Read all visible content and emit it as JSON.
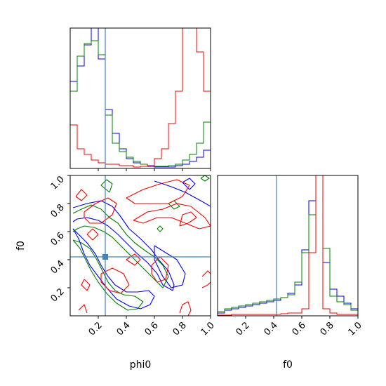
{
  "chart_data": {
    "type": "corner",
    "parameters": [
      "phi0",
      "f0"
    ],
    "truths": {
      "phi0": 0.25,
      "f0": 0.42
    },
    "axis_range": {
      "phi0": [
        0.0,
        1.0
      ],
      "f0": [
        0.0,
        1.0
      ]
    },
    "ticks": {
      "phi0": [
        "0.2",
        "0.4",
        "0.6",
        "0.8",
        "1.0"
      ],
      "f0": [
        "0.2",
        "0.4",
        "0.6",
        "0.8",
        "1.0"
      ]
    },
    "tick_values": [
      0.2,
      0.4,
      0.6,
      0.8,
      1.0
    ],
    "colors": {
      "series1": "#0000ff",
      "series2": "#008000",
      "series3": "#ff0000",
      "truth": "#4682b4"
    },
    "hist_phi0": {
      "bin_edges": [
        0,
        0.05,
        0.1,
        0.15,
        0.2,
        0.25,
        0.3,
        0.35,
        0.4,
        0.45,
        0.5,
        0.55,
        0.6,
        0.65,
        0.7,
        0.75,
        0.8,
        0.85,
        0.9,
        0.95,
        1.0
      ],
      "ylim": [
        0,
        1.0
      ],
      "series": [
        {
          "color": "#0000ff",
          "values": [
            0.62,
            0.73,
            0.88,
            1.02,
            0.78,
            0.42,
            0.25,
            0.14,
            0.07,
            0.04,
            0.03,
            0.015,
            0.01,
            0.01,
            0.01,
            0.02,
            0.03,
            0.05,
            0.08,
            0.13
          ]
        },
        {
          "color": "#008000",
          "values": [
            0.55,
            0.8,
            0.89,
            0.91,
            0.81,
            0.38,
            0.18,
            0.12,
            0.08,
            0.05,
            0.03,
            0.02,
            0.015,
            0.015,
            0.02,
            0.03,
            0.06,
            0.1,
            0.18,
            0.33
          ]
        },
        {
          "color": "#ff0000",
          "values": [
            0.31,
            0.14,
            0.1,
            0.06,
            0.04,
            0.03,
            0.03,
            0.02,
            0.02,
            0.01,
            0.015,
            0.02,
            0.07,
            0.14,
            0.32,
            0.55,
            1.12,
            1.02,
            0.83,
            0.55
          ]
        }
      ]
    },
    "hist_f0": {
      "bin_edges": [
        0,
        0.05,
        0.1,
        0.15,
        0.2,
        0.25,
        0.3,
        0.35,
        0.4,
        0.45,
        0.5,
        0.55,
        0.6,
        0.65,
        0.7,
        0.75,
        0.8,
        0.85,
        0.9,
        0.95,
        1.0
      ],
      "ylim": [
        0,
        1.0
      ],
      "series": [
        {
          "color": "#0000ff",
          "values": [
            0.02,
            0.04,
            0.05,
            0.06,
            0.07,
            0.08,
            0.09,
            0.1,
            0.11,
            0.13,
            0.16,
            0.22,
            0.47,
            0.82,
            1.08,
            0.38,
            0.19,
            0.14,
            0.09,
            0.05
          ]
        },
        {
          "color": "#008000",
          "values": [
            0.03,
            0.05,
            0.06,
            0.07,
            0.08,
            0.09,
            0.1,
            0.11,
            0.12,
            0.13,
            0.15,
            0.24,
            0.45,
            0.72,
            1.06,
            0.48,
            0.14,
            0.1,
            0.08,
            0.04
          ]
        },
        {
          "color": "#ff0000",
          "values": [
            0.005,
            0.005,
            0.01,
            0.01,
            0.01,
            0.01,
            0.01,
            0.01,
            0.01,
            0.015,
            0.02,
            0.02,
            0.05,
            0.45,
            1.25,
            0.05,
            0.02,
            0.01,
            0.01,
            0.01
          ]
        }
      ]
    },
    "contours": [
      {
        "color": "#0000ff",
        "paths": [
          [
            [
              0.02,
              0.77
            ],
            [
              0.12,
              0.8
            ],
            [
              0.22,
              0.82
            ],
            [
              0.3,
              0.78
            ],
            [
              0.35,
              0.72
            ],
            [
              0.42,
              0.62
            ],
            [
              0.5,
              0.55
            ],
            [
              0.58,
              0.47
            ],
            [
              0.63,
              0.4
            ],
            [
              0.7,
              0.32
            ],
            [
              0.74,
              0.22
            ],
            [
              0.73,
              0.18
            ],
            [
              0.66,
              0.22
            ],
            [
              0.62,
              0.3
            ],
            [
              0.55,
              0.38
            ],
            [
              0.47,
              0.45
            ],
            [
              0.4,
              0.52
            ],
            [
              0.34,
              0.58
            ],
            [
              0.27,
              0.64
            ],
            [
              0.2,
              0.68
            ],
            [
              0.12,
              0.7
            ],
            [
              0.05,
              0.69
            ],
            [
              0.02,
              0.67
            ]
          ],
          [
            [
              0.02,
              0.62
            ],
            [
              0.06,
              0.55
            ],
            [
              0.1,
              0.44
            ],
            [
              0.14,
              0.36
            ],
            [
              0.2,
              0.28
            ],
            [
              0.26,
              0.2
            ],
            [
              0.33,
              0.12
            ],
            [
              0.42,
              0.07
            ],
            [
              0.5,
              0.05
            ],
            [
              0.57,
              0.08
            ],
            [
              0.6,
              0.14
            ],
            [
              0.56,
              0.18
            ],
            [
              0.48,
              0.17
            ],
            [
              0.4,
              0.17
            ],
            [
              0.32,
              0.22
            ],
            [
              0.27,
              0.28
            ],
            [
              0.22,
              0.36
            ],
            [
              0.18,
              0.44
            ],
            [
              0.12,
              0.52
            ],
            [
              0.06,
              0.58
            ],
            [
              0.02,
              0.62
            ]
          ],
          [
            [
              0.6,
              0.96
            ],
            [
              0.72,
              0.92
            ],
            [
              0.82,
              0.88
            ],
            [
              0.93,
              0.82
            ],
            [
              1.0,
              0.78
            ]
          ],
          [
            [
              0.8,
              0.95
            ],
            [
              0.85,
              0.9
            ],
            [
              0.89,
              0.94
            ],
            [
              0.85,
              0.98
            ],
            [
              0.8,
              0.95
            ]
          ],
          [
            [
              0.6,
              0.5
            ],
            [
              0.68,
              0.45
            ],
            [
              0.76,
              0.4
            ],
            [
              0.82,
              0.3
            ],
            [
              0.8,
              0.22
            ],
            [
              0.72,
              0.2
            ],
            [
              0.66,
              0.28
            ],
            [
              0.6,
              0.4
            ],
            [
              0.6,
              0.5
            ]
          ]
        ]
      },
      {
        "color": "#008000",
        "paths": [
          [
            [
              0.02,
              0.73
            ],
            [
              0.08,
              0.76
            ],
            [
              0.15,
              0.79
            ],
            [
              0.22,
              0.76
            ],
            [
              0.28,
              0.7
            ],
            [
              0.34,
              0.66
            ],
            [
              0.4,
              0.58
            ],
            [
              0.46,
              0.52
            ],
            [
              0.54,
              0.46
            ],
            [
              0.6,
              0.42
            ],
            [
              0.66,
              0.36
            ],
            [
              0.7,
              0.28
            ],
            [
              0.66,
              0.2
            ],
            [
              0.6,
              0.26
            ],
            [
              0.54,
              0.32
            ],
            [
              0.48,
              0.38
            ],
            [
              0.42,
              0.44
            ],
            [
              0.36,
              0.5
            ],
            [
              0.3,
              0.56
            ],
            [
              0.24,
              0.6
            ],
            [
              0.17,
              0.63
            ],
            [
              0.1,
              0.64
            ],
            [
              0.05,
              0.62
            ],
            [
              0.02,
              0.6
            ]
          ],
          [
            [
              0.02,
              0.54
            ],
            [
              0.07,
              0.48
            ],
            [
              0.11,
              0.4
            ],
            [
              0.15,
              0.32
            ],
            [
              0.2,
              0.24
            ],
            [
              0.26,
              0.16
            ],
            [
              0.33,
              0.09
            ],
            [
              0.41,
              0.04
            ],
            [
              0.48,
              0.05
            ],
            [
              0.52,
              0.1
            ],
            [
              0.46,
              0.14
            ],
            [
              0.38,
              0.15
            ],
            [
              0.32,
              0.18
            ],
            [
              0.27,
              0.24
            ],
            [
              0.23,
              0.32
            ],
            [
              0.19,
              0.4
            ],
            [
              0.14,
              0.48
            ],
            [
              0.08,
              0.52
            ],
            [
              0.02,
              0.54
            ]
          ],
          [
            [
              0.62,
              0.62
            ],
            [
              0.64,
              0.6
            ],
            [
              0.66,
              0.62
            ],
            [
              0.64,
              0.64
            ],
            [
              0.62,
              0.62
            ]
          ],
          [
            [
              0.93,
              0.98
            ],
            [
              0.96,
              0.96
            ],
            [
              0.99,
              0.98
            ],
            [
              0.96,
              1.0
            ],
            [
              0.93,
              0.98
            ]
          ],
          [
            [
              0.7,
              0.8
            ],
            [
              0.74,
              0.76
            ],
            [
              0.78,
              0.78
            ],
            [
              0.74,
              0.82
            ],
            [
              0.7,
              0.8
            ]
          ],
          [
            [
              0.28,
              0.88
            ],
            [
              0.3,
              0.94
            ],
            [
              0.26,
              0.97
            ],
            [
              0.22,
              0.93
            ],
            [
              0.28,
              0.88
            ]
          ]
        ]
      },
      {
        "color": "#ff0000",
        "paths": [
          [
            [
              0.04,
              0.85
            ],
            [
              0.08,
              0.9
            ],
            [
              0.12,
              0.86
            ],
            [
              0.08,
              0.82
            ],
            [
              0.04,
              0.85
            ]
          ],
          [
            [
              0.1,
              0.74
            ],
            [
              0.18,
              0.8
            ],
            [
              0.27,
              0.84
            ],
            [
              0.33,
              0.8
            ],
            [
              0.3,
              0.72
            ],
            [
              0.22,
              0.66
            ],
            [
              0.14,
              0.66
            ],
            [
              0.1,
              0.7
            ],
            [
              0.1,
              0.74
            ]
          ],
          [
            [
              0.4,
              0.84
            ],
            [
              0.52,
              0.9
            ],
            [
              0.64,
              0.94
            ],
            [
              0.76,
              0.97
            ],
            [
              0.85,
              0.93
            ],
            [
              0.8,
              0.85
            ],
            [
              0.7,
              0.8
            ],
            [
              0.58,
              0.8
            ],
            [
              0.46,
              0.8
            ],
            [
              0.4,
              0.84
            ]
          ],
          [
            [
              0.45,
              0.68
            ],
            [
              0.55,
              0.74
            ],
            [
              0.66,
              0.76
            ],
            [
              0.76,
              0.8
            ],
            [
              0.86,
              0.78
            ],
            [
              0.96,
              0.7
            ],
            [
              1.0,
              0.64
            ],
            [
              0.92,
              0.62
            ],
            [
              0.82,
              0.66
            ],
            [
              0.72,
              0.7
            ],
            [
              0.62,
              0.7
            ],
            [
              0.52,
              0.66
            ],
            [
              0.45,
              0.68
            ]
          ],
          [
            [
              0.78,
              0.64
            ],
            [
              0.84,
              0.66
            ],
            [
              0.9,
              0.7
            ],
            [
              0.86,
              0.74
            ],
            [
              0.8,
              0.72
            ],
            [
              0.78,
              0.64
            ]
          ],
          [
            [
              0.4,
              0.4
            ],
            [
              0.46,
              0.44
            ],
            [
              0.5,
              0.4
            ],
            [
              0.46,
              0.36
            ],
            [
              0.4,
              0.4
            ]
          ],
          [
            [
              0.1,
              0.26
            ],
            [
              0.14,
              0.22
            ],
            [
              0.12,
              0.18
            ],
            [
              0.08,
              0.22
            ],
            [
              0.1,
              0.26
            ]
          ],
          [
            [
              0.22,
              0.3
            ],
            [
              0.3,
              0.34
            ],
            [
              0.38,
              0.3
            ],
            [
              0.42,
              0.22
            ],
            [
              0.36,
              0.16
            ],
            [
              0.28,
              0.18
            ],
            [
              0.22,
              0.24
            ],
            [
              0.22,
              0.3
            ]
          ],
          [
            [
              0.58,
              0.36
            ],
            [
              0.64,
              0.42
            ],
            [
              0.7,
              0.36
            ],
            [
              0.68,
              0.26
            ],
            [
              0.62,
              0.24
            ],
            [
              0.58,
              0.3
            ],
            [
              0.58,
              0.36
            ]
          ],
          [
            [
              0.06,
              0.04
            ],
            [
              0.1,
              0.08
            ],
            [
              0.12,
              0.02
            ]
          ],
          [
            [
              0.78,
              0.02
            ],
            [
              0.8,
              0.08
            ],
            [
              0.84,
              0.1
            ],
            [
              0.86,
              0.04
            ],
            [
              0.84,
              0.0
            ]
          ],
          [
            [
              0.94,
              0.28
            ],
            [
              0.98,
              0.32
            ],
            [
              1.0,
              0.3
            ]
          ],
          [
            [
              0.94,
              0.2
            ],
            [
              0.98,
              0.22
            ],
            [
              1.0,
              0.24
            ]
          ],
          [
            [
              0.12,
              0.58
            ],
            [
              0.16,
              0.62
            ],
            [
              0.2,
              0.58
            ],
            [
              0.16,
              0.54
            ],
            [
              0.12,
              0.58
            ]
          ]
        ]
      }
    ],
    "xlabel": "phi0",
    "ylabel": "f0",
    "x2label": "f0"
  }
}
